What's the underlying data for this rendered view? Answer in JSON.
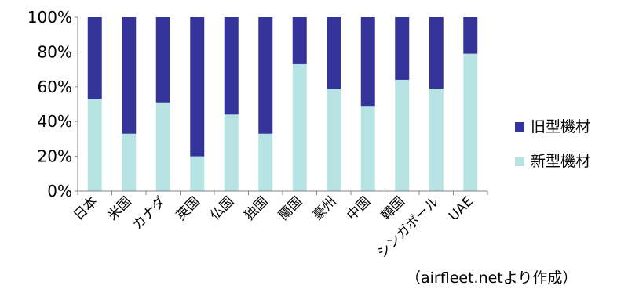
{
  "chart_data": {
    "type": "bar",
    "stacked": true,
    "categories": [
      "日本",
      "米国",
      "カナダ",
      "英国",
      "仏国",
      "独国",
      "蘭国",
      "豪州",
      "中国",
      "韓国",
      "シンガポール",
      "UAE"
    ],
    "series": [
      {
        "name": "新型機材",
        "color": "#b7e3e3",
        "values": [
          53,
          33,
          51,
          20,
          44,
          33,
          73,
          59,
          49,
          64,
          59,
          79
        ]
      },
      {
        "name": "旧型機材",
        "color": "#333399",
        "values": [
          47,
          67,
          49,
          80,
          56,
          67,
          27,
          41,
          51,
          36,
          41,
          21
        ]
      }
    ],
    "y_ticks": [
      "0%",
      "20%",
      "40%",
      "60%",
      "80%",
      "100%"
    ],
    "ylim": [
      0,
      100
    ],
    "grid": false,
    "legend_position": "right"
  },
  "legend": {
    "items": [
      {
        "label": "旧型機材",
        "color": "#333399"
      },
      {
        "label": "新型機材",
        "color": "#b7e3e3"
      }
    ]
  },
  "source_note": "（airfleet.netより作成）"
}
